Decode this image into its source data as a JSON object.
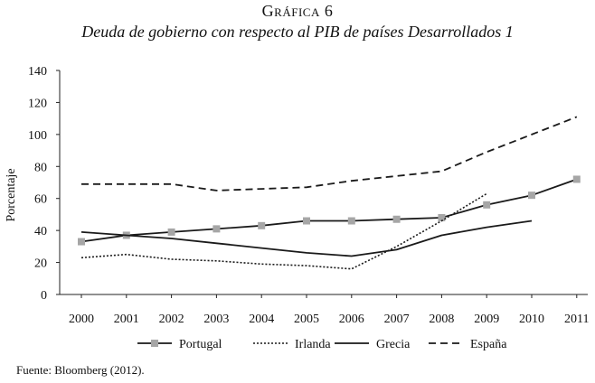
{
  "figure": {
    "label": "Gráfica 6",
    "source": "Fuente: Bloomberg (2012)."
  },
  "chart_data": {
    "type": "line",
    "title": "Deuda de gobierno con respecto al PIB de países Desarrollados 1",
    "xlabel": "",
    "ylabel": "Porcentaje",
    "ylim": [
      0,
      140
    ],
    "yticks": [
      0,
      20,
      40,
      60,
      80,
      100,
      120,
      140
    ],
    "categories": [
      "2000",
      "2001",
      "2002",
      "2003",
      "2004",
      "2005",
      "2006",
      "2007",
      "2008",
      "2009",
      "2010",
      "2011"
    ],
    "legend_position": "bottom",
    "grid": false,
    "series": [
      {
        "name": "Portugal",
        "style": "solid-marker",
        "color": "#1a1a1a",
        "marker_color": "#a6a6a6",
        "values": [
          33,
          37,
          39,
          41,
          43,
          46,
          46,
          47,
          48,
          56,
          62,
          72
        ]
      },
      {
        "name": "Irlanda",
        "style": "dotted",
        "color": "#1a1a1a",
        "values": [
          23,
          25,
          22,
          21,
          19,
          18,
          16,
          30,
          46,
          63,
          null,
          null
        ]
      },
      {
        "name": "Grecia",
        "style": "solid",
        "color": "#1a1a1a",
        "values": [
          39,
          37,
          35,
          32,
          29,
          26,
          24,
          28,
          37,
          42,
          46,
          null
        ]
      },
      {
        "name": "España",
        "style": "dashed",
        "color": "#1a1a1a",
        "values": [
          69,
          69,
          69,
          65,
          66,
          67,
          71,
          74,
          77,
          89,
          100,
          111
        ]
      }
    ]
  }
}
